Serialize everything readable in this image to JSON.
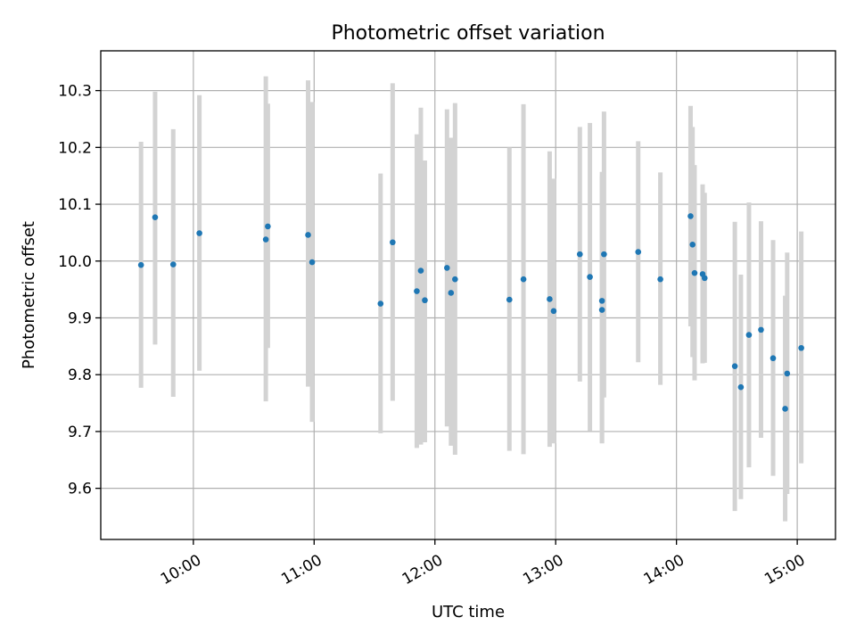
{
  "chart_data": {
    "type": "scatter",
    "title": "Photometric offset variation",
    "xlabel": "UTC time",
    "ylabel": "Photometric offset",
    "xlim": [
      "09:14",
      "15:19"
    ],
    "ylim": [
      9.51,
      10.37
    ],
    "x_ticks": [
      "10:00",
      "11:00",
      "12:00",
      "13:00",
      "14:00",
      "15:00"
    ],
    "y_ticks": [
      9.6,
      9.7,
      9.8,
      9.9,
      10.0,
      10.1,
      10.2,
      10.3
    ],
    "grid": true,
    "point_color": "#1f77b4",
    "errorbar_color": "#d3d3d3",
    "series": [
      {
        "points": [
          {
            "x": "09:34",
            "y": 9.993,
            "yerr_low": 9.777,
            "yerr_high": 10.21
          },
          {
            "x": "09:41",
            "y": 10.077,
            "yerr_low": 9.853,
            "yerr_high": 10.298
          },
          {
            "x": "09:50",
            "y": 9.994,
            "yerr_low": 9.761,
            "yerr_high": 10.232
          },
          {
            "x": "10:03",
            "y": 10.049,
            "yerr_low": 9.807,
            "yerr_high": 10.292
          },
          {
            "x": "10:36",
            "y": 10.038,
            "yerr_low": 9.753,
            "yerr_high": 10.325
          },
          {
            "x": "10:37",
            "y": 10.061,
            "yerr_low": 9.847,
            "yerr_high": 10.277
          },
          {
            "x": "10:57",
            "y": 10.046,
            "yerr_low": 9.779,
            "yerr_high": 10.318
          },
          {
            "x": "10:59",
            "y": 9.998,
            "yerr_low": 9.717,
            "yerr_high": 10.28
          },
          {
            "x": "11:33",
            "y": 9.925,
            "yerr_low": 9.697,
            "yerr_high": 10.154
          },
          {
            "x": "11:39",
            "y": 10.033,
            "yerr_low": 9.754,
            "yerr_high": 10.313
          },
          {
            "x": "11:51",
            "y": 9.947,
            "yerr_low": 9.671,
            "yerr_high": 10.223
          },
          {
            "x": "11:53",
            "y": 9.983,
            "yerr_low": 9.677,
            "yerr_high": 10.27
          },
          {
            "x": "11:55",
            "y": 9.931,
            "yerr_low": 9.681,
            "yerr_high": 10.177
          },
          {
            "x": "12:06",
            "y": 9.988,
            "yerr_low": 9.709,
            "yerr_high": 10.267
          },
          {
            "x": "12:08",
            "y": 9.944,
            "yerr_low": 9.675,
            "yerr_high": 10.217
          },
          {
            "x": "12:10",
            "y": 9.968,
            "yerr_low": 9.659,
            "yerr_high": 10.278
          },
          {
            "x": "12:37",
            "y": 9.932,
            "yerr_low": 9.666,
            "yerr_high": 10.2
          },
          {
            "x": "12:44",
            "y": 9.968,
            "yerr_low": 9.66,
            "yerr_high": 10.276
          },
          {
            "x": "12:57",
            "y": 9.933,
            "yerr_low": 9.673,
            "yerr_high": 10.193
          },
          {
            "x": "12:59",
            "y": 9.912,
            "yerr_low": 9.679,
            "yerr_high": 10.145
          },
          {
            "x": "13:12",
            "y": 10.012,
            "yerr_low": 9.788,
            "yerr_high": 10.236
          },
          {
            "x": "13:17",
            "y": 9.972,
            "yerr_low": 9.701,
            "yerr_high": 10.243
          },
          {
            "x": "13:23",
            "y": 9.93,
            "yerr_low": 9.679,
            "yerr_high": 10.157
          },
          {
            "x": "13:23",
            "y": 9.914,
            "yerr_low": 9.68,
            "yerr_high": 10.15
          },
          {
            "x": "13:24",
            "y": 10.012,
            "yerr_low": 9.76,
            "yerr_high": 10.263
          },
          {
            "x": "13:41",
            "y": 10.016,
            "yerr_low": 9.822,
            "yerr_high": 10.211
          },
          {
            "x": "13:52",
            "y": 9.968,
            "yerr_low": 9.782,
            "yerr_high": 10.156
          },
          {
            "x": "14:07",
            "y": 10.079,
            "yerr_low": 9.885,
            "yerr_high": 10.273
          },
          {
            "x": "14:08",
            "y": 10.029,
            "yerr_low": 9.831,
            "yerr_high": 10.236
          },
          {
            "x": "14:09",
            "y": 9.979,
            "yerr_low": 9.79,
            "yerr_high": 10.169
          },
          {
            "x": "14:13",
            "y": 9.977,
            "yerr_low": 9.82,
            "yerr_high": 10.135
          },
          {
            "x": "14:14",
            "y": 9.97,
            "yerr_low": 9.821,
            "yerr_high": 10.12
          },
          {
            "x": "14:29",
            "y": 9.815,
            "yerr_low": 9.56,
            "yerr_high": 10.069
          },
          {
            "x": "14:32",
            "y": 9.778,
            "yerr_low": 9.581,
            "yerr_high": 9.976
          },
          {
            "x": "14:36",
            "y": 9.87,
            "yerr_low": 9.637,
            "yerr_high": 10.103
          },
          {
            "x": "14:42",
            "y": 9.879,
            "yerr_low": 9.689,
            "yerr_high": 10.07
          },
          {
            "x": "14:48",
            "y": 9.829,
            "yerr_low": 9.622,
            "yerr_high": 10.037
          },
          {
            "x": "14:54",
            "y": 9.74,
            "yerr_low": 9.542,
            "yerr_high": 9.939
          },
          {
            "x": "14:55",
            "y": 9.802,
            "yerr_low": 9.59,
            "yerr_high": 10.015
          },
          {
            "x": "15:02",
            "y": 9.847,
            "yerr_low": 9.644,
            "yerr_high": 10.052
          }
        ]
      }
    ]
  }
}
